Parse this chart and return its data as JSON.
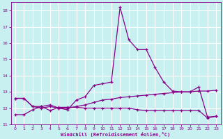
{
  "xlabel": "Windchill (Refroidissement éolien,°C)",
  "bg_color": "#c8f0f0",
  "grid_color": "#ffffff",
  "line_color": "#880088",
  "ylim": [
    11,
    18.5
  ],
  "xlim": [
    -0.5,
    23.5
  ],
  "yticks": [
    11,
    12,
    13,
    14,
    15,
    16,
    17,
    18
  ],
  "xticks": [
    0,
    1,
    2,
    3,
    4,
    5,
    6,
    7,
    8,
    9,
    10,
    11,
    12,
    13,
    14,
    15,
    16,
    17,
    18,
    19,
    20,
    21,
    22,
    23
  ],
  "line1_x": [
    0,
    1,
    2,
    3,
    4,
    5,
    6,
    7,
    8,
    9,
    10,
    11,
    12,
    13,
    14,
    15,
    16,
    17,
    18,
    19,
    20,
    21,
    22,
    23
  ],
  "line1_y": [
    12.6,
    12.6,
    12.1,
    12.1,
    12.2,
    12.0,
    11.9,
    12.5,
    12.7,
    13.4,
    13.5,
    13.6,
    18.2,
    16.2,
    15.6,
    15.6,
    14.5,
    13.6,
    13.05,
    13.0,
    13.0,
    13.3,
    11.45,
    11.5
  ],
  "line2_x": [
    0,
    1,
    2,
    3,
    4,
    5,
    6,
    7,
    8,
    9,
    10,
    11,
    12,
    13,
    14,
    15,
    16,
    17,
    18,
    19,
    20,
    21,
    22,
    23
  ],
  "line2_y": [
    11.6,
    11.6,
    11.9,
    12.1,
    11.85,
    12.05,
    12.05,
    12.05,
    12.0,
    12.0,
    12.0,
    12.0,
    12.0,
    12.0,
    11.9,
    11.85,
    11.85,
    11.85,
    11.85,
    11.85,
    11.85,
    11.85,
    11.4,
    11.5
  ],
  "line3_x": [
    0,
    1,
    2,
    3,
    4,
    5,
    6,
    7,
    8,
    9,
    10,
    11,
    12,
    13,
    14,
    15,
    16,
    17,
    18,
    19,
    20,
    21,
    22,
    23
  ],
  "line3_y": [
    12.6,
    12.6,
    12.1,
    12.0,
    12.1,
    12.0,
    12.0,
    12.1,
    12.2,
    12.35,
    12.5,
    12.55,
    12.65,
    12.7,
    12.75,
    12.8,
    12.85,
    12.9,
    12.95,
    13.0,
    13.0,
    13.05,
    13.05,
    13.1
  ]
}
